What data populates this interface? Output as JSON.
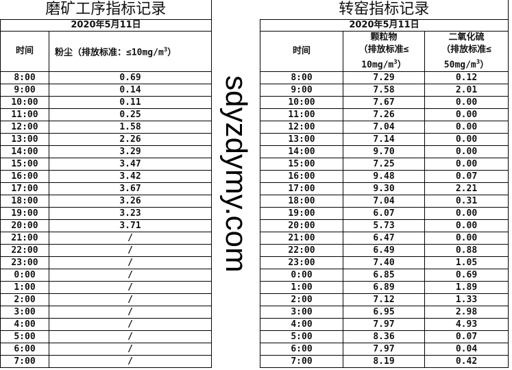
{
  "left": {
    "title": "磨矿工序指标记录",
    "date": "2020年5月11日",
    "headers": {
      "time": "时间",
      "dust": "粉尘（排放标准：≤10mg/m",
      "dust_sup": "3",
      "dust_end": "）"
    },
    "rows": [
      {
        "time": "8:00",
        "dust": "0.69"
      },
      {
        "time": "9:00",
        "dust": "0.14"
      },
      {
        "time": "10:00",
        "dust": "0.11"
      },
      {
        "time": "11:00",
        "dust": "0.25"
      },
      {
        "time": "12:00",
        "dust": "1.58"
      },
      {
        "time": "13:00",
        "dust": "2.26"
      },
      {
        "time": "14:00",
        "dust": "3.29"
      },
      {
        "time": "15:00",
        "dust": "3.47"
      },
      {
        "time": "16:00",
        "dust": "3.42"
      },
      {
        "time": "17:00",
        "dust": "3.67"
      },
      {
        "time": "18:00",
        "dust": "3.26"
      },
      {
        "time": "19:00",
        "dust": "3.23"
      },
      {
        "time": "20:00",
        "dust": "3.71"
      },
      {
        "time": "21:00",
        "dust": "/"
      },
      {
        "time": "22:00",
        "dust": "/"
      },
      {
        "time": "23:00",
        "dust": "/"
      },
      {
        "time": "0:00",
        "dust": "/"
      },
      {
        "time": "1:00",
        "dust": "/"
      },
      {
        "time": "2:00",
        "dust": "/"
      },
      {
        "time": "3:00",
        "dust": "/"
      },
      {
        "time": "4:00",
        "dust": "/"
      },
      {
        "time": "5:00",
        "dust": "/"
      },
      {
        "time": "6:00",
        "dust": "/"
      },
      {
        "time": "7:00",
        "dust": "/"
      }
    ]
  },
  "right": {
    "title": "转窑指标记录",
    "date": "2020年5月11日",
    "headers": {
      "time": "时间",
      "pm_l1": "颗粒物",
      "pm_l2": "（排放标准≤",
      "pm_l3": "10mg/m",
      "pm_sup": "3",
      "pm_end": "）",
      "so2_l1": "二氧化硫",
      "so2_l2": "（排放标准≤",
      "so2_l3": "50mg/m",
      "so2_sup": "3",
      "so2_end": "）"
    },
    "rows": [
      {
        "time": "8:00",
        "pm": "7.29",
        "so2": "0.12"
      },
      {
        "time": "9:00",
        "pm": "7.58",
        "so2": "2.01"
      },
      {
        "time": "10:00",
        "pm": "7.67",
        "so2": "0.00"
      },
      {
        "time": "11:00",
        "pm": "7.26",
        "so2": "0.00"
      },
      {
        "time": "12:00",
        "pm": "7.04",
        "so2": "0.00"
      },
      {
        "time": "13:00",
        "pm": "7.14",
        "so2": "0.00"
      },
      {
        "time": "14:00",
        "pm": "9.70",
        "so2": "0.00"
      },
      {
        "time": "15:00",
        "pm": "7.25",
        "so2": "0.00"
      },
      {
        "time": "16:00",
        "pm": "9.48",
        "so2": "0.07"
      },
      {
        "time": "17:00",
        "pm": "9.30",
        "so2": "2.21"
      },
      {
        "time": "18:00",
        "pm": "7.04",
        "so2": "0.31"
      },
      {
        "time": "19:00",
        "pm": "6.07",
        "so2": "0.00"
      },
      {
        "time": "20:00",
        "pm": "5.73",
        "so2": "0.00"
      },
      {
        "time": "21:00",
        "pm": "6.47",
        "so2": "0.00"
      },
      {
        "time": "22:00",
        "pm": "6.49",
        "so2": "0.88"
      },
      {
        "time": "23:00",
        "pm": "7.40",
        "so2": "1.05"
      },
      {
        "time": "0:00",
        "pm": "6.85",
        "so2": "0.69"
      },
      {
        "time": "1:00",
        "pm": "6.89",
        "so2": "1.89"
      },
      {
        "time": "2:00",
        "pm": "7.12",
        "so2": "1.33"
      },
      {
        "time": "3:00",
        "pm": "6.95",
        "so2": "2.98"
      },
      {
        "time": "4:00",
        "pm": "7.97",
        "so2": "4.93"
      },
      {
        "time": "5:00",
        "pm": "8.36",
        "so2": "0.07"
      },
      {
        "time": "6:00",
        "pm": "7.97",
        "so2": "0.04"
      },
      {
        "time": "7:00",
        "pm": "8.19",
        "so2": "0.42"
      }
    ]
  },
  "watermark": "sdyzdymy.com"
}
